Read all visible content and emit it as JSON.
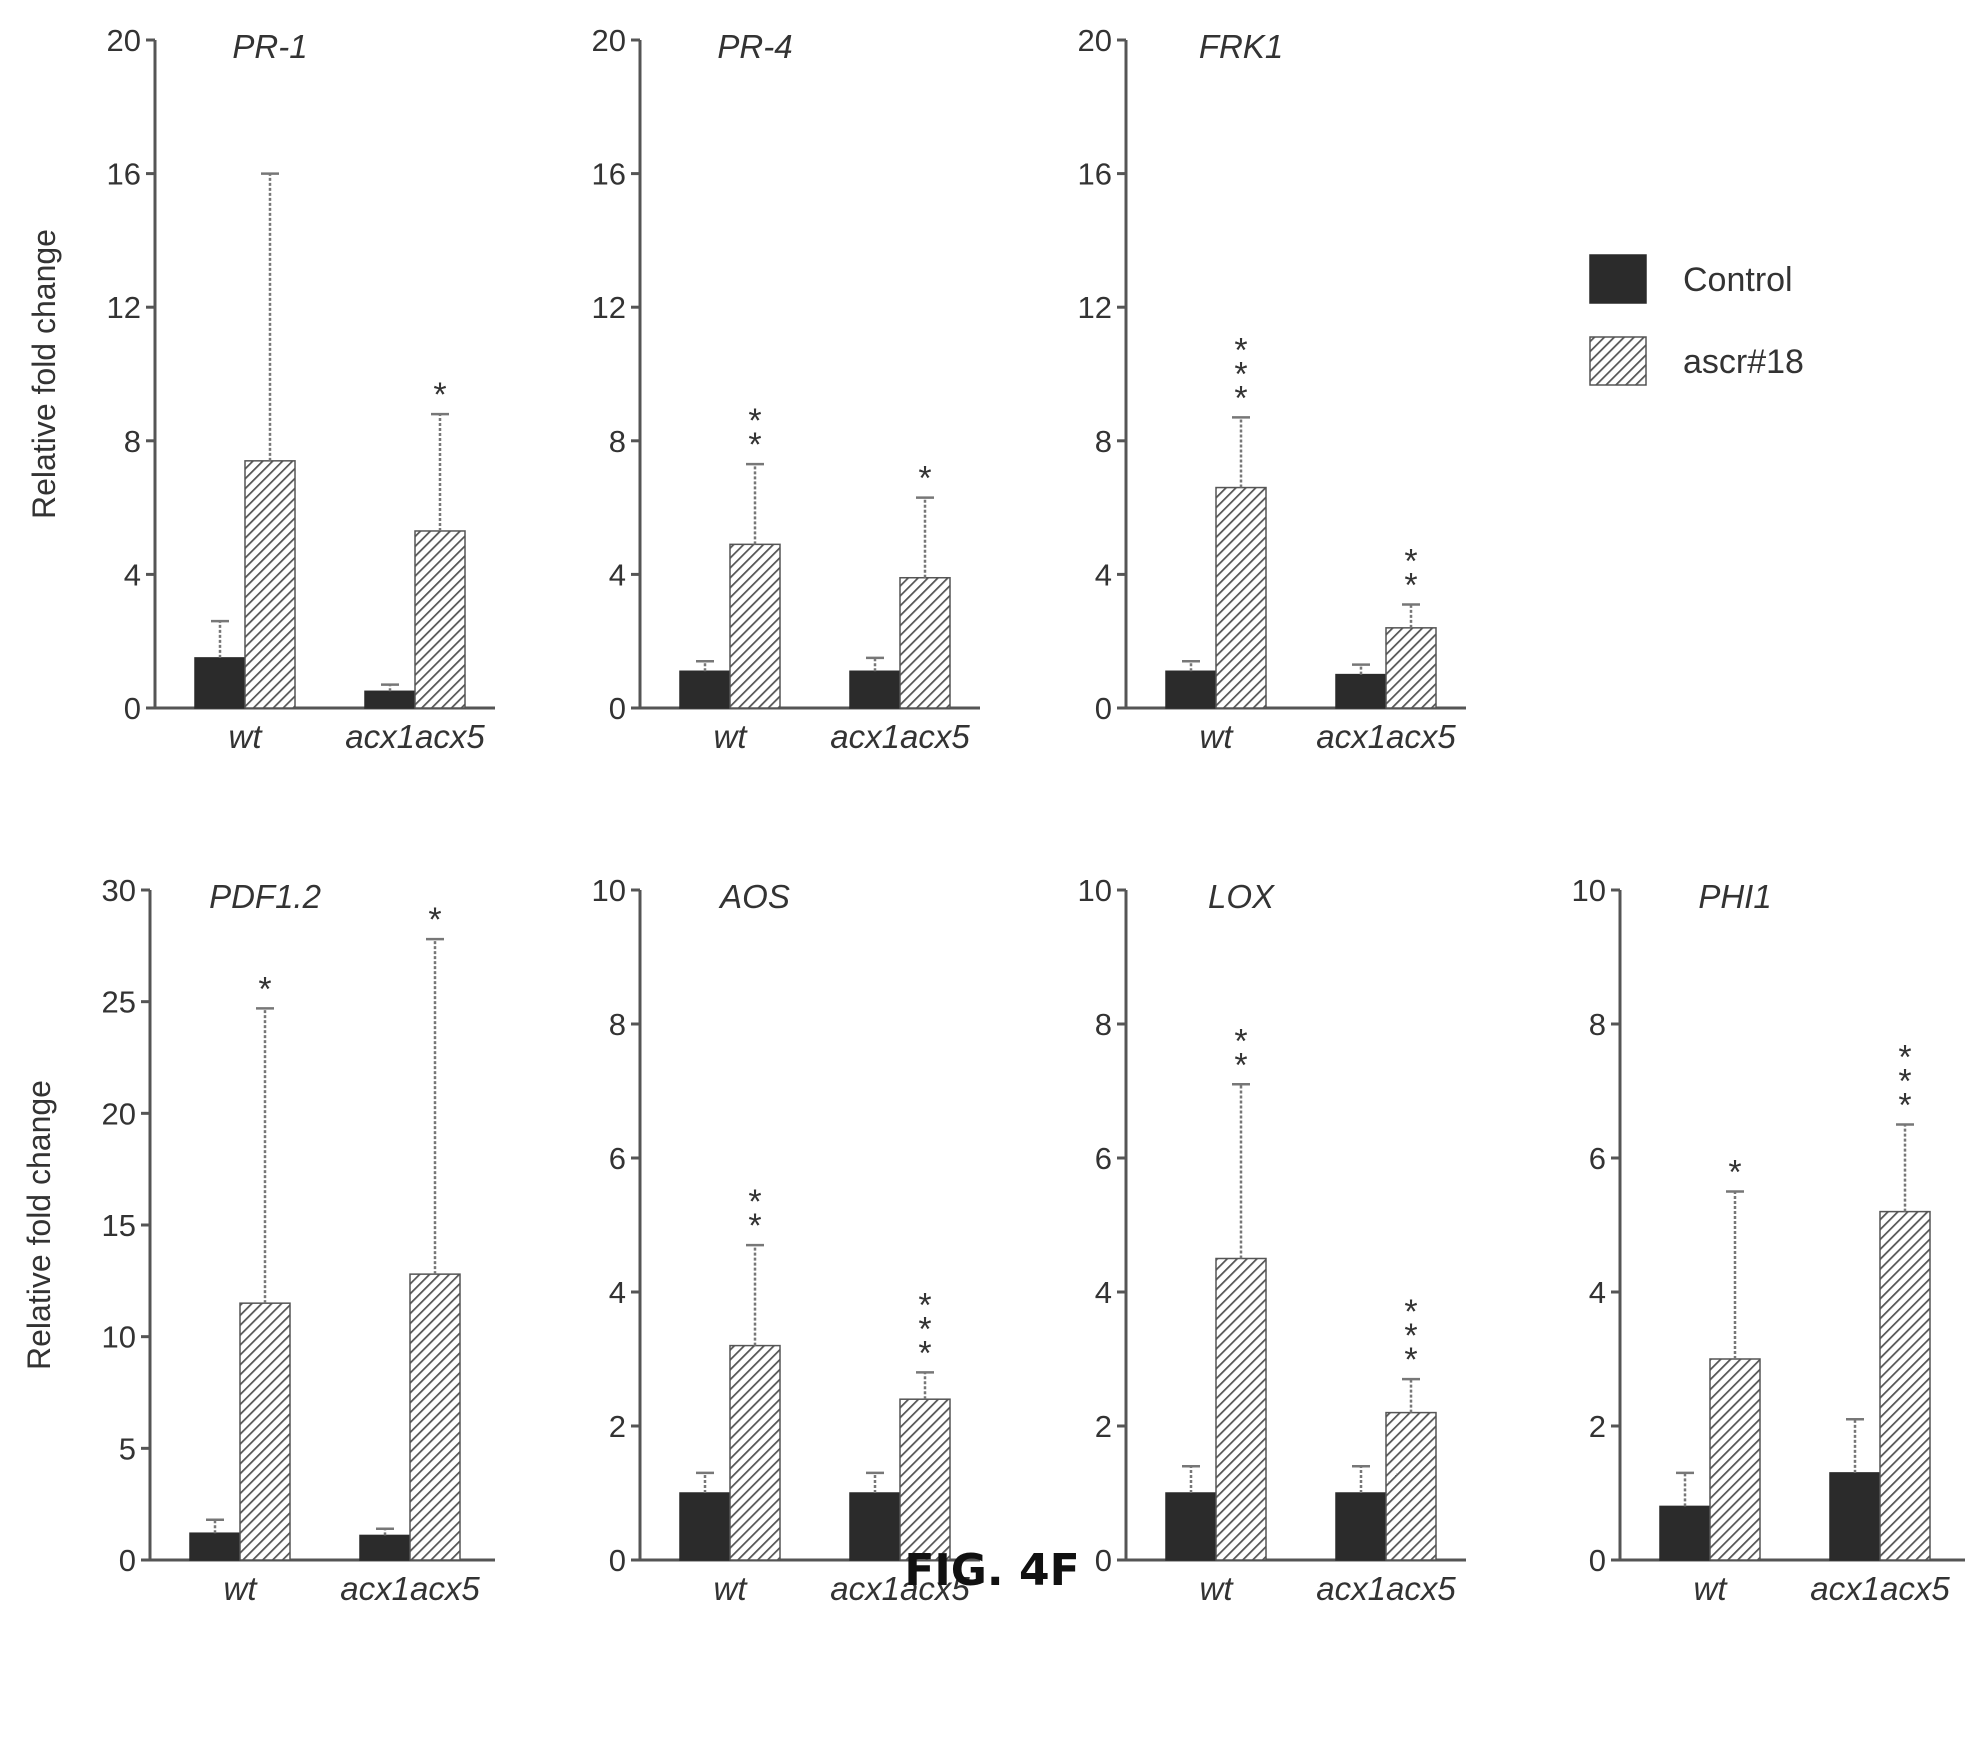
{
  "figure_caption": "FIG. 4F",
  "colors": {
    "control": "#2b2b2b",
    "treated_stripe": "#555555",
    "axis": "#555555",
    "text": "#333333"
  },
  "legend": [
    {
      "name": "Control",
      "pattern": "solid"
    },
    {
      "name": "ascr#18",
      "pattern": "hatched"
    }
  ],
  "chart_data": [
    {
      "type": "bar",
      "title": "PR-1",
      "ylabel": "Relative fold change",
      "ylim": [
        0,
        20
      ],
      "yticks": [
        "0",
        "4",
        "8",
        "12",
        "16",
        "20"
      ],
      "categories": [
        "wt",
        "acx1acx5"
      ],
      "series": [
        {
          "name": "Control",
          "values": [
            1.5,
            0.5
          ],
          "errors": [
            1.1,
            0.2
          ],
          "stars": [
            "",
            ""
          ]
        },
        {
          "name": "ascr#18",
          "values": [
            7.4,
            5.3
          ],
          "errors": [
            8.6,
            3.5
          ],
          "stars": [
            "",
            "*"
          ]
        }
      ]
    },
    {
      "type": "bar",
      "title": "PR-4",
      "ylabel": "",
      "ylim": [
        0,
        20
      ],
      "yticks": [
        "0",
        "4",
        "8",
        "12",
        "16",
        "20"
      ],
      "categories": [
        "wt",
        "acx1acx5"
      ],
      "series": [
        {
          "name": "Control",
          "values": [
            1.1,
            1.1
          ],
          "errors": [
            0.3,
            0.4
          ],
          "stars": [
            "",
            ""
          ]
        },
        {
          "name": "ascr#18",
          "values": [
            4.9,
            3.9
          ],
          "errors": [
            2.4,
            2.4
          ],
          "stars": [
            "**",
            "*"
          ]
        }
      ]
    },
    {
      "type": "bar",
      "title": "FRK1",
      "ylabel": "",
      "ylim": [
        0,
        20
      ],
      "yticks": [
        "0",
        "4",
        "8",
        "12",
        "16",
        "20"
      ],
      "categories": [
        "wt",
        "acx1acx5"
      ],
      "series": [
        {
          "name": "Control",
          "values": [
            1.1,
            1.0
          ],
          "errors": [
            0.3,
            0.3
          ],
          "stars": [
            "",
            ""
          ]
        },
        {
          "name": "ascr#18",
          "values": [
            6.6,
            2.4
          ],
          "errors": [
            2.1,
            0.7
          ],
          "stars": [
            "***",
            "**"
          ]
        }
      ]
    },
    {
      "type": "bar",
      "title": "PDF1.2",
      "ylabel": "Relative fold change",
      "ylim": [
        0,
        30
      ],
      "yticks": [
        "0",
        "5",
        "10",
        "15",
        "20",
        "25",
        "30"
      ],
      "categories": [
        "wt",
        "acx1acx5"
      ],
      "series": [
        {
          "name": "Control",
          "values": [
            1.2,
            1.1
          ],
          "errors": [
            0.6,
            0.3
          ],
          "stars": [
            "",
            ""
          ]
        },
        {
          "name": "ascr#18",
          "values": [
            11.5,
            12.8
          ],
          "errors": [
            13.2,
            15.0
          ],
          "stars": [
            "*",
            "*"
          ]
        }
      ]
    },
    {
      "type": "bar",
      "title": "AOS",
      "ylabel": "",
      "ylim": [
        0,
        10
      ],
      "yticks": [
        "0",
        "2",
        "4",
        "6",
        "8",
        "10"
      ],
      "categories": [
        "wt",
        "acx1acx5"
      ],
      "series": [
        {
          "name": "Control",
          "values": [
            1.0,
            1.0
          ],
          "errors": [
            0.3,
            0.3
          ],
          "stars": [
            "",
            ""
          ]
        },
        {
          "name": "ascr#18",
          "values": [
            3.2,
            2.4
          ],
          "errors": [
            1.5,
            0.4
          ],
          "stars": [
            "**",
            "***"
          ]
        }
      ]
    },
    {
      "type": "bar",
      "title": "LOX",
      "ylabel": "",
      "ylim": [
        0,
        10
      ],
      "yticks": [
        "0",
        "2",
        "4",
        "6",
        "8",
        "10"
      ],
      "categories": [
        "wt",
        "acx1acx5"
      ],
      "series": [
        {
          "name": "Control",
          "values": [
            1.0,
            1.0
          ],
          "errors": [
            0.4,
            0.4
          ],
          "stars": [
            "",
            ""
          ]
        },
        {
          "name": "ascr#18",
          "values": [
            4.5,
            2.2
          ],
          "errors": [
            2.6,
            0.5
          ],
          "stars": [
            "**",
            "***"
          ]
        }
      ]
    },
    {
      "type": "bar",
      "title": "PHI1",
      "ylabel": "",
      "ylim": [
        0,
        10
      ],
      "yticks": [
        "0",
        "2",
        "4",
        "6",
        "8",
        "10"
      ],
      "categories": [
        "wt",
        "acx1acx5"
      ],
      "series": [
        {
          "name": "Control",
          "values": [
            0.8,
            1.3
          ],
          "errors": [
            0.5,
            0.8
          ],
          "stars": [
            "",
            ""
          ]
        },
        {
          "name": "ascr#18",
          "values": [
            3.0,
            5.2
          ],
          "errors": [
            2.5,
            1.3
          ],
          "stars": [
            "*",
            "***"
          ]
        }
      ]
    }
  ]
}
